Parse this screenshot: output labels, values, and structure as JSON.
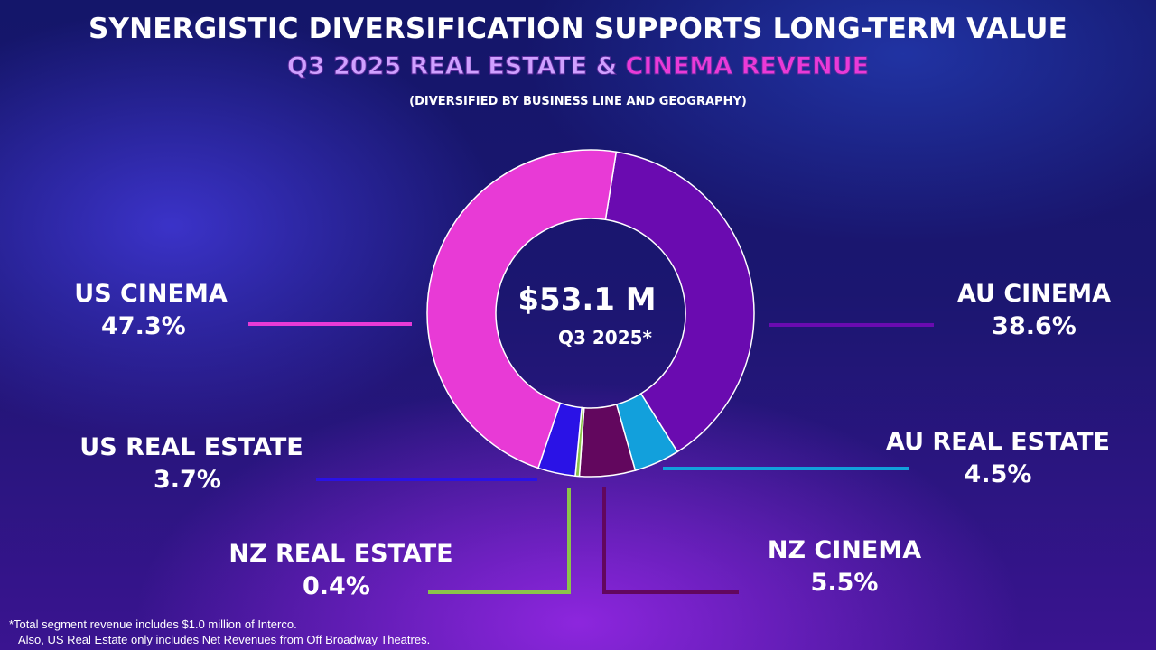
{
  "header": {
    "title": "SYNERGISTIC DIVERSIFICATION SUPPORTS LONG-TERM VALUE",
    "subtitle_part1": "Q3 2025 REAL ESTATE & ",
    "subtitle_part2": "CINEMA REVENUE",
    "note": "(DIVERSIFIED BY BUSINESS LINE AND GEOGRAPHY)"
  },
  "chart_data": {
    "type": "pie",
    "donut": true,
    "center_value": "$53.1 M",
    "center_label": "Q3 2025*",
    "slices": [
      {
        "name": "AU CINEMA",
        "value": 38.6,
        "label": "38.6%",
        "color": "#6a0bb0"
      },
      {
        "name": "AU REAL ESTATE",
        "value": 4.5,
        "label": "4.5%",
        "color": "#12a0dc"
      },
      {
        "name": "NZ CINEMA",
        "value": 5.5,
        "label": "5.5%",
        "color": "#62075e"
      },
      {
        "name": "NZ REAL ESTATE",
        "value": 0.4,
        "label": "0.4%",
        "color": "#8bc34a"
      },
      {
        "name": "US REAL ESTATE",
        "value": 3.7,
        "label": "3.7%",
        "color": "#2a12e6"
      },
      {
        "name": "US CINEMA",
        "value": 47.3,
        "label": "47.3%",
        "color": "#e83ad6"
      }
    ]
  },
  "footnote": {
    "line1": "*Total segment revenue includes $1.0 million of Interco.",
    "line2": "Also, US Real Estate only includes Net Revenues from Off Broadway Theatres."
  }
}
